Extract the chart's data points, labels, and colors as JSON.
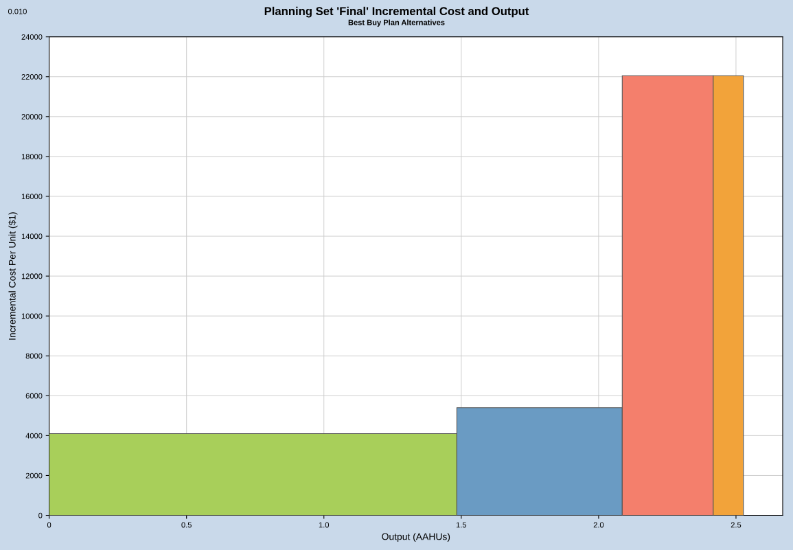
{
  "chart_data": {
    "type": "histogram",
    "title": "Planning Set 'Final' Incremental Cost and Output",
    "subtitle": "Best Buy Plan Alternatives",
    "xlabel": "Output (AAHUs)",
    "ylabel": "Incremental Cost Per Unit ($1)",
    "annotations": [
      "0.010"
    ],
    "bins": [
      0,
      1.484,
      2.086,
      2.417,
      2.527
    ],
    "values": [
      4100,
      5400,
      22050,
      22050
    ],
    "colors": [
      "#a8cf5a",
      "#6a9bc3",
      "#f47f6c",
      "#f2a33a"
    ],
    "xlim": [
      0,
      2.67
    ],
    "xticks": [
      0,
      {
        "value": 0.5,
        "label": "0.5"
      },
      {
        "value": 1,
        "label": "1.0"
      },
      {
        "value": 1.5,
        "label": "1.5"
      },
      {
        "value": 2,
        "label": "2.0"
      },
      {
        "value": 2.5,
        "label": "2.5"
      }
    ],
    "ylim": [
      0,
      24000
    ],
    "yticks": [
      0,
      2000,
      4000,
      6000,
      8000,
      10000,
      12000,
      14000,
      16000,
      18000,
      20000,
      22000,
      24000
    ],
    "grid": true
  }
}
